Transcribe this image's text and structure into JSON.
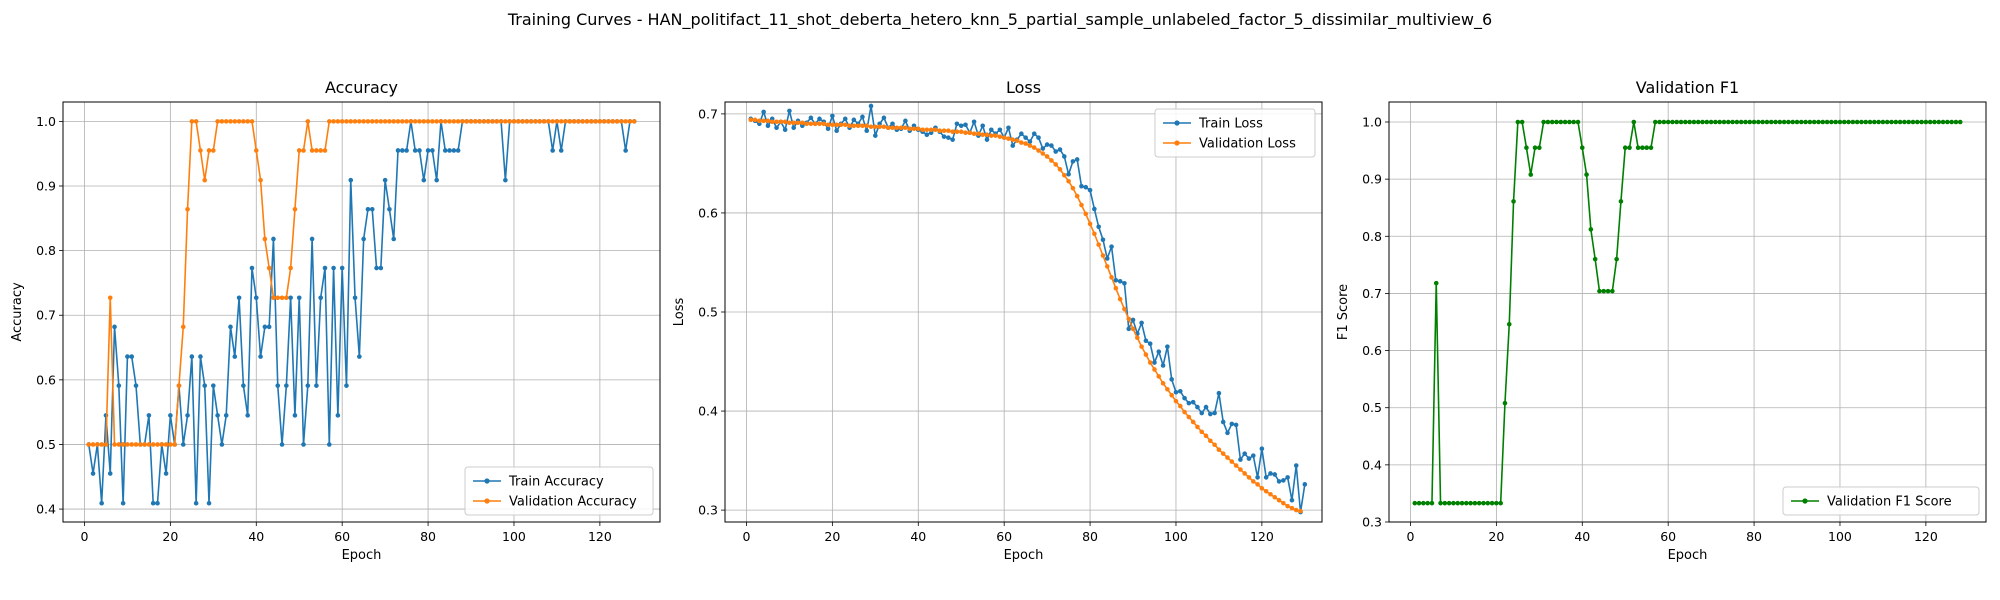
{
  "suptitle": "Training Curves - HAN_politifact_11_shot_deberta_hetero_knn_5_partial_sample_unlabeled_factor_5_dissimilar_multiview_6",
  "chart_data": [
    {
      "type": "line",
      "title": "Accuracy",
      "xlabel": "Epoch",
      "ylabel": "Accuracy",
      "xlim": [
        -5,
        134
      ],
      "ylim": [
        0.38,
        1.03
      ],
      "xticks": [
        0,
        20,
        40,
        60,
        80,
        100,
        120
      ],
      "yticks": [
        0.4,
        0.5,
        0.6,
        0.7,
        0.8,
        0.9,
        1.0
      ],
      "grid": true,
      "legend": "lower-right",
      "x_start": 1,
      "series": [
        {
          "name": "Train Accuracy",
          "color": "#1f77b4",
          "values": [
            0.5,
            0.455,
            0.5,
            0.409,
            0.545,
            0.455,
            0.682,
            0.591,
            0.409,
            0.636,
            0.636,
            0.591,
            0.5,
            0.5,
            0.545,
            0.409,
            0.409,
            0.5,
            0.455,
            0.545,
            0.5,
            0.591,
            0.5,
            0.545,
            0.636,
            0.409,
            0.636,
            0.591,
            0.409,
            0.591,
            0.545,
            0.5,
            0.545,
            0.682,
            0.636,
            0.727,
            0.591,
            0.545,
            0.773,
            0.727,
            0.636,
            0.682,
            0.682,
            0.818,
            0.591,
            0.5,
            0.591,
            0.727,
            0.545,
            0.727,
            0.5,
            0.591,
            0.818,
            0.591,
            0.727,
            0.773,
            0.5,
            0.773,
            0.545,
            0.773,
            0.591,
            0.909,
            0.727,
            0.636,
            0.818,
            0.864,
            0.864,
            0.773,
            0.773,
            0.909,
            0.864,
            0.818,
            0.955,
            0.955,
            0.955,
            1.0,
            0.955,
            0.955,
            0.909,
            0.955,
            0.955,
            0.909,
            1.0,
            0.955,
            0.955,
            0.955,
            0.955,
            1.0,
            1.0,
            1.0,
            1.0,
            1.0,
            1.0,
            1.0,
            1.0,
            1.0,
            1.0,
            0.909,
            1.0,
            1.0,
            1.0,
            1.0,
            1.0,
            1.0,
            1.0,
            1.0,
            1.0,
            1.0,
            0.955,
            1.0,
            0.955,
            1.0,
            1.0,
            1.0,
            1.0,
            1.0,
            1.0,
            1.0,
            1.0,
            1.0,
            1.0,
            1.0,
            1.0,
            1.0,
            1.0,
            0.955,
            1.0,
            1.0
          ]
        },
        {
          "name": "Validation Accuracy",
          "color": "#ff7f0e",
          "values": [
            0.5,
            0.5,
            0.5,
            0.5,
            0.5,
            0.727,
            0.5,
            0.5,
            0.5,
            0.5,
            0.5,
            0.5,
            0.5,
            0.5,
            0.5,
            0.5,
            0.5,
            0.5,
            0.5,
            0.5,
            0.5,
            0.591,
            0.682,
            0.864,
            1.0,
            1.0,
            0.955,
            0.909,
            0.955,
            0.955,
            1.0,
            1.0,
            1.0,
            1.0,
            1.0,
            1.0,
            1.0,
            1.0,
            1.0,
            0.955,
            0.909,
            0.818,
            0.773,
            0.727,
            0.727,
            0.727,
            0.727,
            0.773,
            0.864,
            0.955,
            0.955,
            1.0,
            0.955,
            0.955,
            0.955,
            0.955,
            1.0,
            1.0,
            1.0,
            1.0,
            1.0,
            1.0,
            1.0,
            1.0,
            1.0,
            1.0,
            1.0,
            1.0,
            1.0,
            1.0,
            1.0,
            1.0,
            1.0,
            1.0,
            1.0,
            1.0,
            1.0,
            1.0,
            1.0,
            1.0,
            1.0,
            1.0,
            1.0,
            1.0,
            1.0,
            1.0,
            1.0,
            1.0,
            1.0,
            1.0,
            1.0,
            1.0,
            1.0,
            1.0,
            1.0,
            1.0,
            1.0,
            1.0,
            1.0,
            1.0,
            1.0,
            1.0,
            1.0,
            1.0,
            1.0,
            1.0,
            1.0,
            1.0,
            1.0,
            1.0,
            1.0,
            1.0,
            1.0,
            1.0,
            1.0,
            1.0,
            1.0,
            1.0,
            1.0,
            1.0,
            1.0,
            1.0,
            1.0,
            1.0,
            1.0,
            1.0,
            1.0,
            1.0
          ]
        }
      ]
    },
    {
      "type": "line",
      "title": "Loss",
      "xlabel": "Epoch",
      "ylabel": "Loss",
      "xlim": [
        -5,
        134
      ],
      "ylim": [
        0.288,
        0.712
      ],
      "xticks": [
        0,
        20,
        40,
        60,
        80,
        100,
        120
      ],
      "yticks": [
        0.3,
        0.4,
        0.5,
        0.6,
        0.7
      ],
      "grid": true,
      "legend": "top-right",
      "x_start": 1,
      "series": [
        {
          "name": "Train Loss",
          "color": "#1f77b4",
          "values": [
            0.695,
            0.693,
            0.69,
            0.702,
            0.688,
            0.695,
            0.686,
            0.692,
            0.684,
            0.703,
            0.686,
            0.693,
            0.688,
            0.691,
            0.696,
            0.69,
            0.695,
            0.692,
            0.685,
            0.698,
            0.683,
            0.69,
            0.695,
            0.686,
            0.694,
            0.69,
            0.697,
            0.683,
            0.708,
            0.678,
            0.69,
            0.696,
            0.686,
            0.69,
            0.684,
            0.685,
            0.693,
            0.683,
            0.688,
            0.684,
            0.682,
            0.679,
            0.681,
            0.686,
            0.682,
            0.677,
            0.676,
            0.674,
            0.69,
            0.688,
            0.689,
            0.681,
            0.692,
            0.678,
            0.688,
            0.674,
            0.684,
            0.68,
            0.684,
            0.676,
            0.686,
            0.668,
            0.674,
            0.68,
            0.676,
            0.672,
            0.68,
            0.676,
            0.665,
            0.669,
            0.668,
            0.662,
            0.664,
            0.657,
            0.639,
            0.652,
            0.654,
            0.627,
            0.626,
            0.623,
            0.604,
            0.586,
            0.573,
            0.554,
            0.566,
            0.532,
            0.531,
            0.529,
            0.483,
            0.492,
            0.478,
            0.489,
            0.471,
            0.468,
            0.449,
            0.46,
            0.446,
            0.465,
            0.432,
            0.419,
            0.42,
            0.413,
            0.408,
            0.409,
            0.404,
            0.398,
            0.404,
            0.397,
            0.398,
            0.418,
            0.389,
            0.378,
            0.387,
            0.386,
            0.351,
            0.357,
            0.352,
            0.355,
            0.333,
            0.362,
            0.333,
            0.337,
            0.336,
            0.329,
            0.33,
            0.333,
            0.31,
            0.345,
            0.298,
            0.326
          ]
        },
        {
          "name": "Validation Loss",
          "color": "#ff7f0e",
          "values": [
            0.694,
            0.694,
            0.693,
            0.693,
            0.693,
            0.692,
            0.692,
            0.692,
            0.692,
            0.691,
            0.691,
            0.691,
            0.691,
            0.69,
            0.69,
            0.69,
            0.69,
            0.69,
            0.689,
            0.689,
            0.689,
            0.689,
            0.689,
            0.688,
            0.688,
            0.688,
            0.688,
            0.688,
            0.687,
            0.687,
            0.687,
            0.687,
            0.686,
            0.686,
            0.686,
            0.686,
            0.686,
            0.685,
            0.685,
            0.685,
            0.684,
            0.684,
            0.684,
            0.684,
            0.683,
            0.683,
            0.683,
            0.682,
            0.682,
            0.682,
            0.681,
            0.681,
            0.68,
            0.68,
            0.679,
            0.679,
            0.678,
            0.678,
            0.677,
            0.676,
            0.675,
            0.674,
            0.673,
            0.671,
            0.67,
            0.668,
            0.666,
            0.663,
            0.66,
            0.657,
            0.653,
            0.649,
            0.644,
            0.638,
            0.632,
            0.625,
            0.617,
            0.608,
            0.599,
            0.589,
            0.579,
            0.568,
            0.557,
            0.546,
            0.535,
            0.524,
            0.513,
            0.503,
            0.493,
            0.483,
            0.474,
            0.465,
            0.457,
            0.449,
            0.442,
            0.435,
            0.428,
            0.422,
            0.416,
            0.41,
            0.405,
            0.399,
            0.394,
            0.389,
            0.384,
            0.379,
            0.375,
            0.37,
            0.366,
            0.361,
            0.357,
            0.353,
            0.349,
            0.345,
            0.341,
            0.337,
            0.333,
            0.329,
            0.326,
            0.322,
            0.319,
            0.316,
            0.313,
            0.31,
            0.307,
            0.304,
            0.302,
            0.3,
            0.299
          ]
        }
      ]
    },
    {
      "type": "line",
      "title": "Validation F1",
      "xlabel": "Epoch",
      "ylabel": "F1 Score",
      "xlim": [
        -5,
        134
      ],
      "ylim": [
        0.3,
        1.035
      ],
      "xticks": [
        0,
        20,
        40,
        60,
        80,
        100,
        120
      ],
      "yticks": [
        0.3,
        0.4,
        0.5,
        0.6,
        0.7,
        0.8,
        0.9,
        1.0
      ],
      "grid": true,
      "legend": "lower-right",
      "x_start": 1,
      "series": [
        {
          "name": "Validation F1 Score",
          "color": "#008000",
          "values": [
            0.333,
            0.333,
            0.333,
            0.333,
            0.333,
            0.718,
            0.333,
            0.333,
            0.333,
            0.333,
            0.333,
            0.333,
            0.333,
            0.333,
            0.333,
            0.333,
            0.333,
            0.333,
            0.333,
            0.333,
            0.333,
            0.508,
            0.646,
            0.861,
            1.0,
            1.0,
            0.955,
            0.908,
            0.955,
            0.955,
            1.0,
            1.0,
            1.0,
            1.0,
            1.0,
            1.0,
            1.0,
            1.0,
            1.0,
            0.955,
            0.908,
            0.812,
            0.76,
            0.704,
            0.704,
            0.704,
            0.704,
            0.76,
            0.861,
            0.955,
            0.955,
            1.0,
            0.955,
            0.955,
            0.955,
            0.955,
            1.0,
            1.0,
            1.0,
            1.0,
            1.0,
            1.0,
            1.0,
            1.0,
            1.0,
            1.0,
            1.0,
            1.0,
            1.0,
            1.0,
            1.0,
            1.0,
            1.0,
            1.0,
            1.0,
            1.0,
            1.0,
            1.0,
            1.0,
            1.0,
            1.0,
            1.0,
            1.0,
            1.0,
            1.0,
            1.0,
            1.0,
            1.0,
            1.0,
            1.0,
            1.0,
            1.0,
            1.0,
            1.0,
            1.0,
            1.0,
            1.0,
            1.0,
            1.0,
            1.0,
            1.0,
            1.0,
            1.0,
            1.0,
            1.0,
            1.0,
            1.0,
            1.0,
            1.0,
            1.0,
            1.0,
            1.0,
            1.0,
            1.0,
            1.0,
            1.0,
            1.0,
            1.0,
            1.0,
            1.0,
            1.0,
            1.0,
            1.0,
            1.0,
            1.0,
            1.0,
            1.0,
            1.0
          ]
        }
      ]
    }
  ]
}
